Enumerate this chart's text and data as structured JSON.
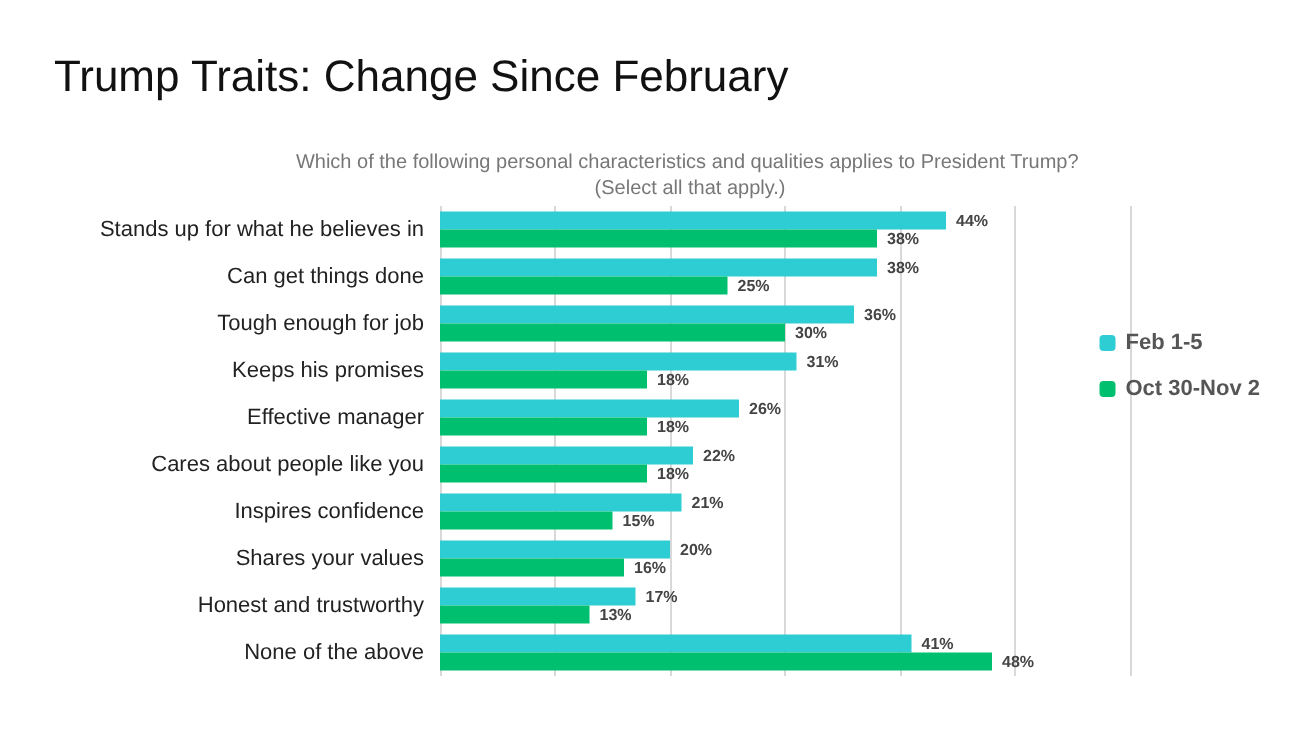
{
  "chart_data": {
    "type": "bar",
    "orientation": "horizontal",
    "title": "Trump Traits: Change Since February",
    "subtitle": "Which of the following personal characteristics and qualities applies to President Trump? (Select all that apply.)",
    "categories": [
      "Stands up for what he believes in",
      "Can get things done",
      "Tough enough for job",
      "Keeps his promises",
      "Effective manager",
      "Cares about people like you",
      "Inspires confidence",
      "Shares your values",
      "Honest and trustworthy",
      "None of the above"
    ],
    "series": [
      {
        "name": "Feb 1-5",
        "color": "#2ecdd3",
        "values": [
          44,
          38,
          36,
          31,
          26,
          22,
          21,
          20,
          17,
          41
        ],
        "value_labels": [
          "44%",
          "38%",
          "36%",
          "31%",
          "26%",
          "22%",
          "21%",
          "20%",
          "17%",
          "41%"
        ]
      },
      {
        "name": "Oct 30-Nov 2",
        "color": "#00bf6f",
        "values": [
          38,
          25,
          30,
          18,
          18,
          18,
          15,
          16,
          13,
          48
        ],
        "value_labels": [
          "38%",
          "25%",
          "30%",
          "18%",
          "18%",
          "18%",
          "15%",
          "16%",
          "13%",
          "48%"
        ]
      }
    ],
    "xlim": [
      0,
      60
    ],
    "xticks": [
      {
        "value": 0,
        "label": null
      },
      {
        "value": 10,
        "label": null
      },
      {
        "value": 20,
        "label": null
      },
      {
        "value": 30,
        "label": null
      },
      {
        "value": 40,
        "label": null
      },
      {
        "value": 50,
        "label": null
      },
      {
        "value": 60,
        "label": null
      }
    ],
    "tick_labels": "y",
    "grid": "x",
    "legend": "right"
  }
}
